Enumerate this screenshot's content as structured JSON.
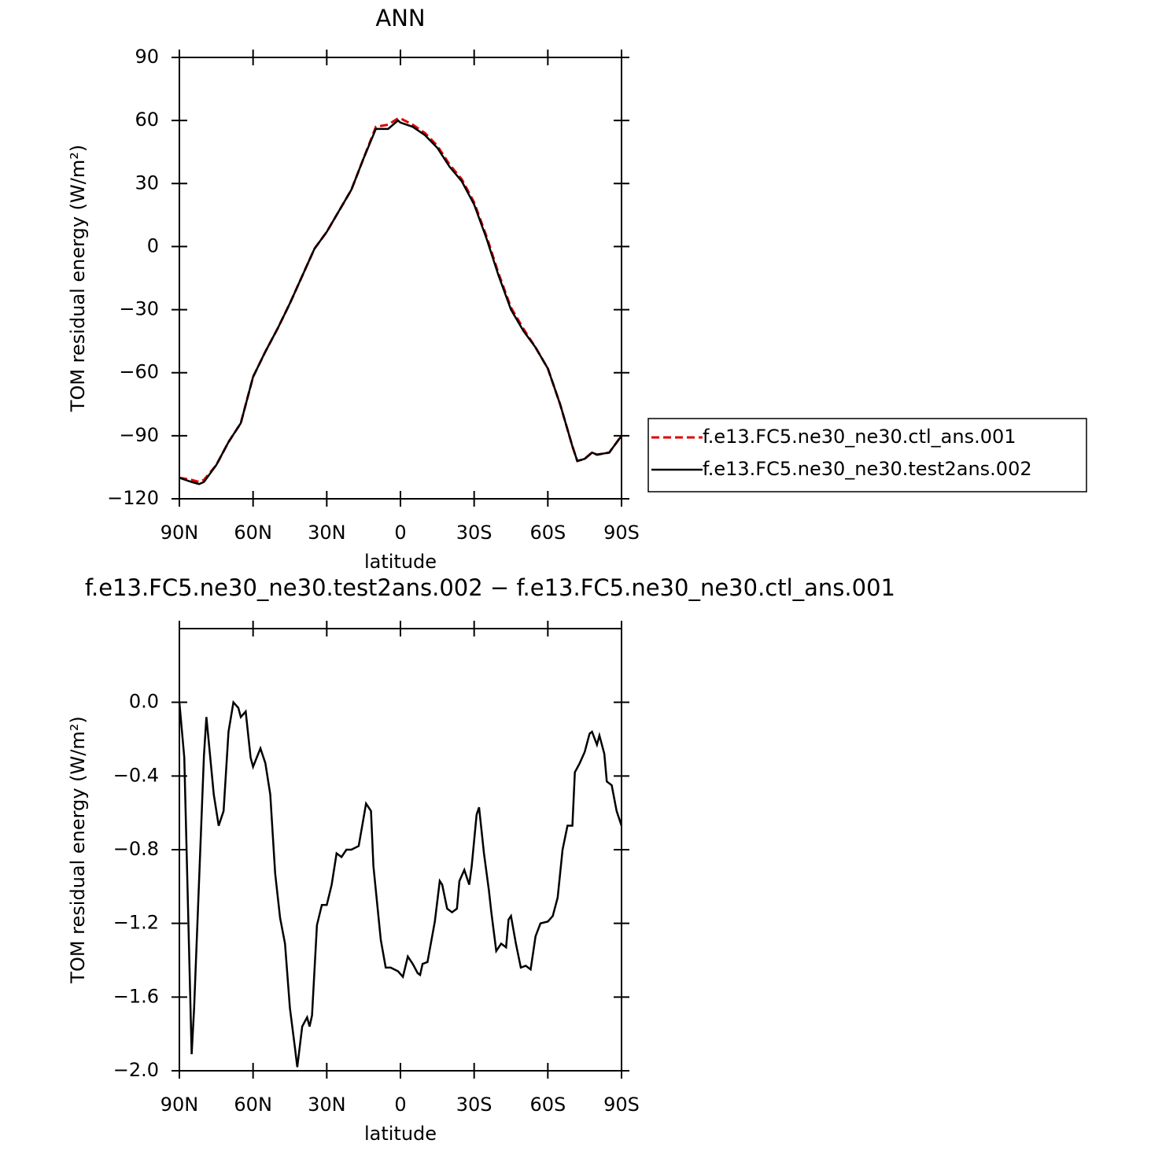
{
  "chart_data": [
    {
      "type": "line",
      "title": "ANN",
      "xlabel": "latitude",
      "ylabel": "TOM residual energy (W/m²)",
      "x": [
        90,
        85,
        82,
        80,
        75,
        70,
        65,
        60,
        55,
        50,
        45,
        40,
        35,
        30,
        25,
        20,
        15,
        10,
        5,
        1,
        0,
        -5,
        -10,
        -15,
        -20,
        -25,
        -30,
        -35,
        -40,
        -45,
        -50,
        -55,
        -60,
        -65,
        -70,
        -72,
        -75,
        -78,
        -80,
        -85,
        -90
      ],
      "series": [
        {
          "name": "f.e13.FC5.ne30_ne30.ctl_ans.001",
          "color": "#e00000",
          "style": "dashed",
          "values": [
            -110,
            -111,
            -112,
            -111,
            -104,
            -93,
            -84,
            -62,
            -50,
            -39,
            -27,
            -14,
            -1,
            7,
            17,
            27,
            42,
            57,
            58,
            61,
            61,
            58,
            54,
            48,
            39,
            32,
            21,
            5,
            -13,
            -29,
            -39,
            -48,
            -58,
            -75,
            -95,
            -102,
            -101,
            -98,
            -99,
            -98,
            -90
          ]
        },
        {
          "name": "f.e13.FC5.ne30_ne30.test2ans.002",
          "color": "#000000",
          "style": "solid",
          "values": [
            -110,
            -112,
            -113,
            -112,
            -104,
            -93,
            -84,
            -62,
            -50,
            -39,
            -27,
            -14,
            -1,
            7,
            17,
            27,
            42,
            56,
            56,
            60,
            59,
            57,
            53,
            47,
            38,
            31,
            20,
            4,
            -14,
            -30,
            -40,
            -48,
            -58,
            -75,
            -95,
            -102,
            -101,
            -98,
            -99,
            -98,
            -90
          ]
        }
      ],
      "xlim": [
        90,
        -90
      ],
      "xticks": [
        {
          "value": 90,
          "label": "90N"
        },
        {
          "value": 60,
          "label": "60N"
        },
        {
          "value": 30,
          "label": "30N"
        },
        0,
        {
          "value": -30,
          "label": "30S"
        },
        {
          "value": -60,
          "label": "60S"
        },
        {
          "value": -90,
          "label": "90S"
        }
      ],
      "ylim": [
        -120,
        90
      ],
      "yticks": [
        {
          "value": -120,
          "label": "−120"
        },
        {
          "value": -90,
          "label": "−90"
        },
        {
          "value": -60,
          "label": "−60"
        },
        {
          "value": -30,
          "label": "−30"
        },
        0,
        30,
        60,
        90
      ],
      "legend": "right"
    },
    {
      "type": "line",
      "title": "f.e13.FC5.ne30_ne30.test2ans.002 − f.e13.FC5.ne30_ne30.ctl_ans.001",
      "xlabel": "latitude",
      "ylabel": "TOM residual energy (W/m²)",
      "x": [
        90,
        88,
        85,
        84,
        80,
        79,
        76,
        74,
        72,
        70,
        68,
        66,
        65,
        63,
        61,
        60,
        57,
        55,
        53,
        51,
        49,
        47,
        45,
        43,
        42,
        40,
        38,
        37,
        36,
        34,
        32,
        30,
        28,
        26,
        24,
        22,
        20,
        17,
        14,
        12,
        11,
        8,
        6,
        4,
        1,
        -1,
        -3,
        -5,
        -7,
        -8,
        -9,
        -11,
        -14,
        -16,
        -17,
        -19,
        -21,
        -23,
        -24,
        -26,
        -28,
        -29,
        -31,
        -32,
        -34,
        -36,
        -37,
        -39,
        -41,
        -43,
        -44,
        -45,
        -47,
        -49,
        -51,
        -53,
        -55,
        -57,
        -60,
        -62,
        -64,
        -66,
        -68,
        -70,
        -71,
        -73,
        -75,
        -77,
        -78,
        -80,
        -81,
        -83,
        -84,
        -86,
        -88,
        -90
      ],
      "series": [
        {
          "name": "f.e13.FC5.ne30_ne30.test2ans.002 − f.e13.FC5.ne30_ne30.ctl_ans.001",
          "color": "#000000",
          "style": "solid",
          "values": [
            0.0,
            -0.3,
            -1.91,
            -1.66,
            -0.29,
            -0.08,
            -0.5,
            -0.67,
            -0.59,
            -0.16,
            0.0,
            -0.03,
            -0.08,
            -0.05,
            -0.3,
            -0.35,
            -0.25,
            -0.33,
            -0.5,
            -0.93,
            -1.17,
            -1.31,
            -1.66,
            -1.87,
            -1.98,
            -1.76,
            -1.71,
            -1.76,
            -1.7,
            -1.21,
            -1.1,
            -1.1,
            -0.99,
            -0.82,
            -0.84,
            -0.8,
            -0.8,
            -0.78,
            -0.55,
            -0.59,
            -0.89,
            -1.29,
            -1.44,
            -1.44,
            -1.46,
            -1.49,
            -1.38,
            -1.42,
            -1.47,
            -1.48,
            -1.42,
            -1.41,
            -1.19,
            -0.97,
            -0.99,
            -1.12,
            -1.14,
            -1.12,
            -0.97,
            -0.91,
            -0.99,
            -0.89,
            -0.61,
            -0.57,
            -0.82,
            -1.02,
            -1.14,
            -1.35,
            -1.31,
            -1.33,
            -1.18,
            -1.16,
            -1.31,
            -1.44,
            -1.43,
            -1.45,
            -1.27,
            -1.2,
            -1.19,
            -1.16,
            -1.06,
            -0.8,
            -0.67,
            -0.67,
            -0.38,
            -0.33,
            -0.27,
            -0.17,
            -0.16,
            -0.23,
            -0.18,
            -0.28,
            -0.43,
            -0.45,
            -0.59,
            -0.67
          ]
        }
      ],
      "xlim": [
        90,
        -90
      ],
      "xticks": [
        {
          "value": 90,
          "label": "90N"
        },
        {
          "value": 60,
          "label": "60N"
        },
        {
          "value": 30,
          "label": "30N"
        },
        0,
        {
          "value": -30,
          "label": "30S"
        },
        {
          "value": -60,
          "label": "60S"
        },
        {
          "value": -90,
          "label": "90S"
        }
      ],
      "ylim": [
        -2.0,
        0.4
      ],
      "yticks": [
        {
          "value": -2.0,
          "label": "−2.0"
        },
        {
          "value": -1.6,
          "label": "−1.6"
        },
        {
          "value": -1.2,
          "label": "−1.2"
        },
        {
          "value": -0.8,
          "label": "−0.8"
        },
        {
          "value": -0.4,
          "label": "−0.4"
        },
        {
          "value": 0.0,
          "label": "0.0"
        }
      ]
    }
  ]
}
